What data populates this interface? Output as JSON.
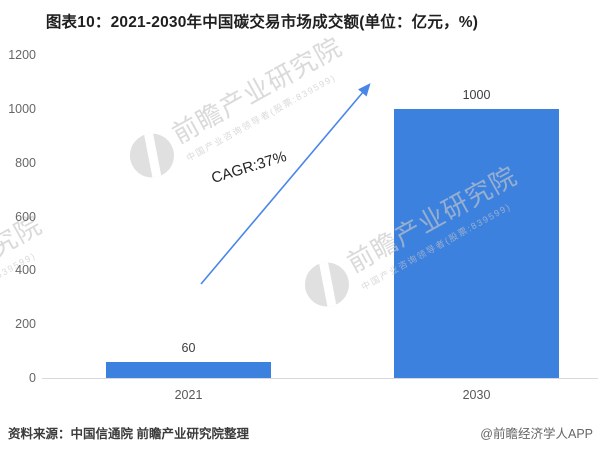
{
  "title": "图表10：2021-2030年中国碳交易市场成交额(单位：亿元，%)",
  "chart_data": {
    "type": "bar",
    "title": "图表10：2021-2030年中国碳交易市场成交额(单位：亿元，%)",
    "unit": "亿元，%",
    "categories": [
      "2021",
      "2030"
    ],
    "values": [
      60,
      1000
    ],
    "value_labels": [
      "60",
      "1000"
    ],
    "ylim": [
      0,
      1200
    ],
    "y_ticks": [
      "1200",
      "1000",
      "800",
      "600",
      "400",
      "200",
      "0"
    ],
    "annotation": "CAGR:37%",
    "grid": false,
    "legend_position": "none",
    "bar_color": "#3D81DF",
    "arrow_color": "#4A86E8"
  },
  "watermark": {
    "brand": "前瞻产业研究院",
    "tagline": "中国产业咨询领导者(股票:839599)"
  },
  "footer": {
    "source": "资料来源：中国信通院 前瞻产业研究院整理",
    "copyright": "@前瞻经济学人APP"
  }
}
